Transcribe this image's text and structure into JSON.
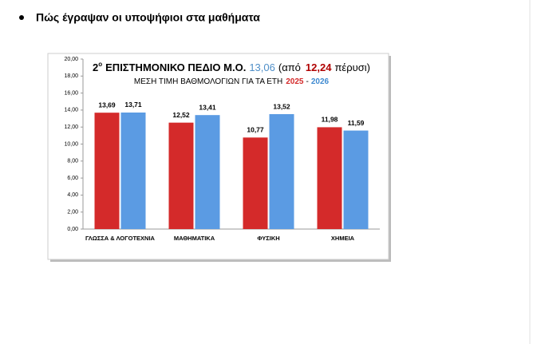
{
  "heading": "Πώς έγραψαν οι υποψήφιοι στα μαθήματα",
  "chart_data": {
    "type": "bar",
    "title_parts": [
      "2",
      "ο",
      "ΕΠΙΣΤΗΜΟΝΙΚΟ ΠΕΔΙΟ Μ.Ο.",
      "13,06",
      "(από",
      "12,24",
      "πέρυσι)"
    ],
    "subtitle": {
      "text": "ΜΕΣΗ ΤΙΜΗ ΒΑΘΜΟΛΟΓΙΩΝ ΓΙΑ ΤΑ ΕΤΗ",
      "separator": "-"
    },
    "categories": [
      "ΓΛΩΣΣΑ & ΛΟΓΟΤΕΧΝΙΑ",
      "ΜΑΘΗΜΑΤΙΚΑ",
      "ΦΥΣΙΚΗ",
      "ΧΗΜΕΙΑ"
    ],
    "series": [
      {
        "name": "2025",
        "color": "#d42a2a",
        "values": [
          13.69,
          12.52,
          10.77,
          11.98
        ],
        "value_labels": [
          "13,69",
          "12,52",
          "10,77",
          "11,98"
        ]
      },
      {
        "name": "2026",
        "color": "#5b9be3",
        "values": [
          13.71,
          13.41,
          13.52,
          11.59
        ],
        "value_labels": [
          "13,71",
          "13,41",
          "13,52",
          "11,59"
        ]
      }
    ],
    "ylim": [
      0,
      20
    ],
    "yticks": [
      {
        "value": 0,
        "label": "0,00"
      },
      {
        "value": 2,
        "label": "2,00"
      },
      {
        "value": 4,
        "label": "4,00"
      },
      {
        "value": 6,
        "label": "6,00"
      },
      {
        "value": 8,
        "label": "8,00"
      },
      {
        "value": 10,
        "label": "10,00"
      },
      {
        "value": 12,
        "label": "12,00"
      },
      {
        "value": 14,
        "label": "14,00"
      },
      {
        "value": 16,
        "label": "16,00"
      },
      {
        "value": 18,
        "label": "18,00"
      },
      {
        "value": 20,
        "label": "20,00"
      }
    ],
    "grid": false
  }
}
